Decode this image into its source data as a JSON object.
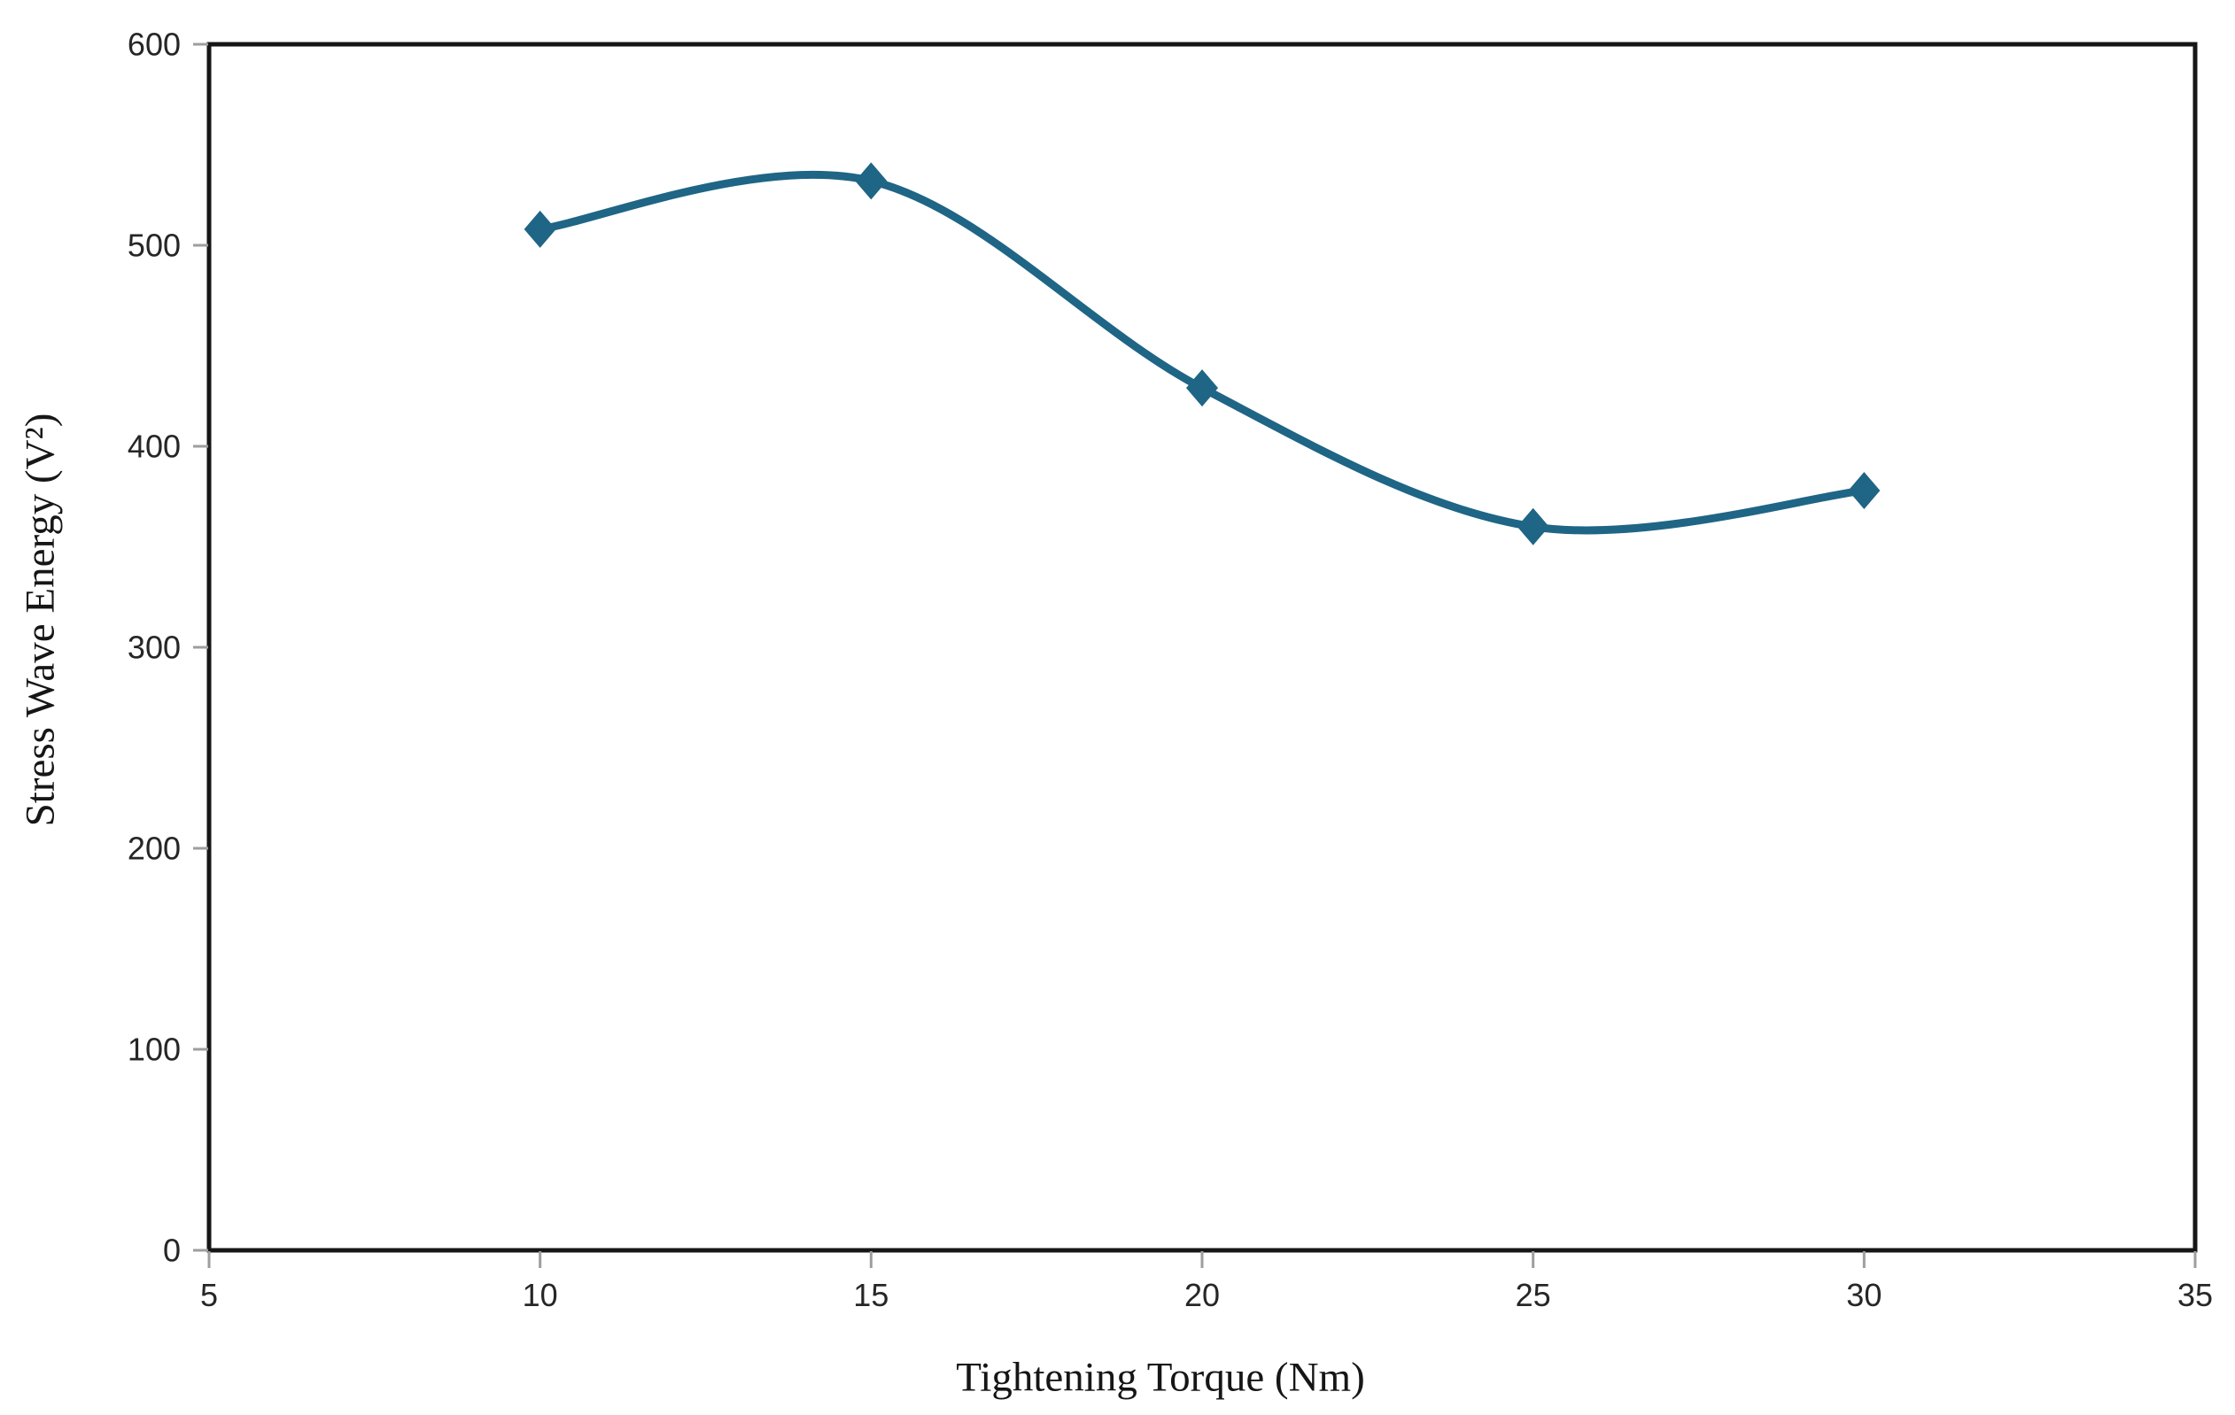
{
  "figure": {
    "background": "#ffffff"
  },
  "chart_data": {
    "type": "line",
    "title": "",
    "xlabel": "Tightening Torque (Nm)",
    "ylabel": "Stress Wave Energy (V²)",
    "x": [
      10,
      15,
      20,
      25,
      30
    ],
    "series": [
      {
        "name": "Stress Wave Energy",
        "values": [
          508,
          532,
          429,
          360,
          378
        ],
        "color": "#1F6585",
        "marker": "diamond",
        "smooth": true
      }
    ],
    "xlim": [
      5,
      35
    ],
    "ylim": [
      0,
      600
    ],
    "x_ticks": [
      5,
      10,
      15,
      20,
      25,
      30,
      35
    ],
    "y_ticks": [
      0,
      100,
      200,
      300,
      400,
      500,
      600
    ],
    "grid": false,
    "legend": "none",
    "frame_color": "#161616",
    "tick_mark_color": "#9e9e9e",
    "tick_label_color": "#262626"
  }
}
